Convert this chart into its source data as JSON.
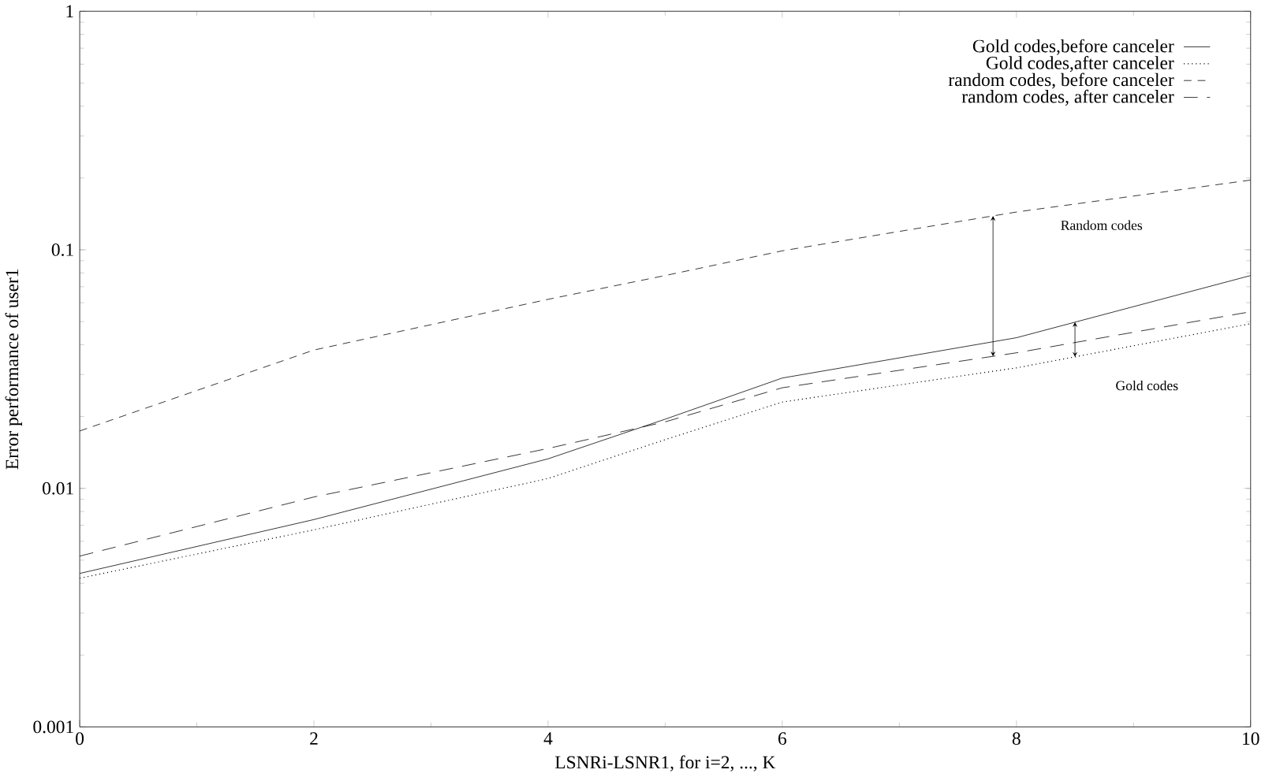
{
  "chart_data": {
    "type": "line",
    "xlabel": "LSNRi-LSNR1, for i=2, ..., K",
    "ylabel": "Error performance of user1",
    "x": [
      0,
      2,
      4,
      5,
      6,
      8,
      10
    ],
    "series": [
      {
        "name": "Gold codes,before canceler",
        "color": "#000000",
        "line_style": "solid",
        "values": [
          0.0044,
          0.0074,
          0.0133,
          0.0195,
          0.029,
          0.0428,
          0.078
        ]
      },
      {
        "name": "Gold codes,after canceler",
        "color": "#000000",
        "line_style": "dotted",
        "values": [
          0.0042,
          0.0067,
          0.011,
          0.016,
          0.023,
          0.032,
          0.049
        ]
      },
      {
        "name": "random codes, before canceler",
        "color": "#000000",
        "line_style": "dashed",
        "values": [
          0.0174,
          0.038,
          0.062,
          0.078,
          0.099,
          0.144,
          0.196
        ]
      },
      {
        "name": "random codes, after canceler",
        "color": "#000000",
        "line_style": "dashed",
        "values": [
          0.0052,
          0.0092,
          0.0147,
          0.019,
          0.0264,
          0.037,
          0.055
        ]
      }
    ],
    "annotations": [
      "Random codes",
      "Gold codes"
    ],
    "log": "y",
    "xlim": [
      0,
      10
    ],
    "ylim": [
      0.001,
      1
    ],
    "xticks": [
      0,
      2,
      4,
      6,
      8,
      10
    ],
    "yticks": [
      0.001,
      0.01,
      0.1,
      1
    ],
    "legend": "top right",
    "grid": false
  }
}
